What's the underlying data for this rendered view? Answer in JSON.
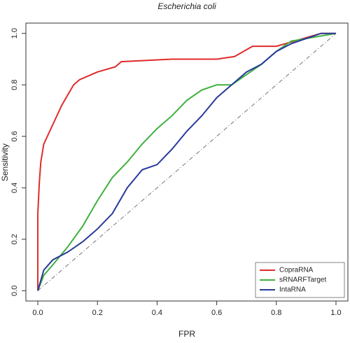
{
  "chart_data": {
    "type": "line",
    "title": "Escherichia coli",
    "x_label": "FPR",
    "y_label": "Sensitivity",
    "xlim": [
      -0.04,
      1.04
    ],
    "ylim": [
      -0.04,
      1.04
    ],
    "xticks": [
      {
        "value": 0,
        "label": "0.0"
      },
      0.2,
      0.4,
      0.6,
      0.8,
      {
        "value": 1,
        "label": "1.0"
      }
    ],
    "yticks": [
      {
        "value": 0,
        "label": "0.0"
      },
      0.2,
      0.4,
      0.6,
      0.8,
      {
        "value": 1,
        "label": "1.0"
      }
    ],
    "legend": "bottomright",
    "series": [
      {
        "name": "CopraRNA",
        "color": "#e02b2b",
        "x": [
          0,
          0,
          0.005,
          0.01,
          0.02,
          0.04,
          0.06,
          0.08,
          0.1,
          0.12,
          0.14,
          0.16,
          0.2,
          0.26,
          0.28,
          0.45,
          0.6,
          0.66,
          0.72,
          0.8,
          0.86,
          0.95,
          1
        ],
        "values": [
          0,
          0.3,
          0.42,
          0.5,
          0.57,
          0.62,
          0.67,
          0.72,
          0.76,
          0.8,
          0.82,
          0.83,
          0.85,
          0.87,
          0.89,
          0.9,
          0.9,
          0.91,
          0.95,
          0.95,
          0.97,
          1,
          1
        ]
      },
      {
        "name": "sRNARFTarget",
        "color": "#3fb03f",
        "x": [
          0,
          0.02,
          0.05,
          0.1,
          0.15,
          0.2,
          0.25,
          0.3,
          0.35,
          0.4,
          0.45,
          0.5,
          0.55,
          0.6,
          0.65,
          0.7,
          0.75,
          0.8,
          0.85,
          0.9,
          1
        ],
        "values": [
          0,
          0.06,
          0.1,
          0.17,
          0.25,
          0.35,
          0.44,
          0.5,
          0.57,
          0.63,
          0.68,
          0.74,
          0.78,
          0.8,
          0.8,
          0.84,
          0.88,
          0.93,
          0.97,
          0.98,
          1
        ]
      },
      {
        "name": "IntaRNA",
        "color": "#283a9a",
        "x": [
          0,
          0.02,
          0.05,
          0.1,
          0.15,
          0.2,
          0.25,
          0.3,
          0.35,
          0.4,
          0.45,
          0.5,
          0.55,
          0.6,
          0.65,
          0.7,
          0.75,
          0.8,
          0.85,
          0.9,
          0.95,
          1
        ],
        "values": [
          0,
          0.08,
          0.12,
          0.15,
          0.19,
          0.24,
          0.3,
          0.4,
          0.47,
          0.49,
          0.55,
          0.62,
          0.68,
          0.75,
          0.8,
          0.85,
          0.88,
          0.93,
          0.96,
          0.98,
          1,
          1
        ]
      }
    ]
  }
}
